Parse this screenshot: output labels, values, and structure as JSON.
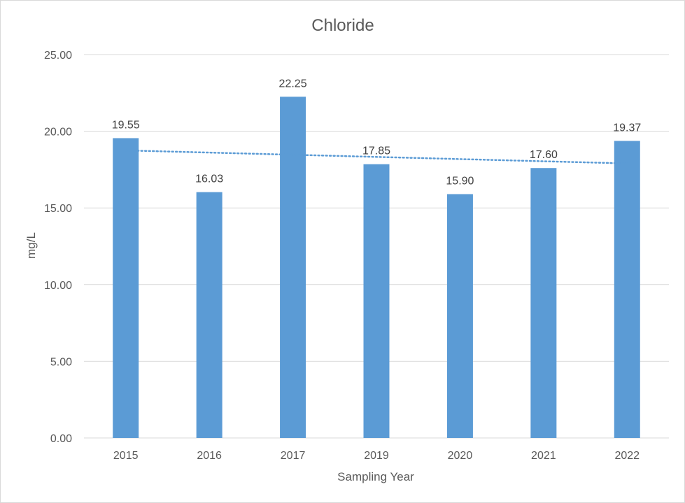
{
  "chart_data": {
    "type": "bar",
    "title": "Chloride",
    "xlabel": "Sampling Year",
    "ylabel": "mg/L",
    "categories": [
      "2015",
      "2016",
      "2017",
      "2019",
      "2020",
      "2021",
      "2022"
    ],
    "values": [
      19.55,
      16.03,
      22.25,
      17.85,
      15.9,
      17.6,
      19.37
    ],
    "data_labels": [
      "19.55",
      "16.03",
      "22.25",
      "17.85",
      "15.90",
      "17.60",
      "19.37"
    ],
    "ylim": [
      0,
      25
    ],
    "yticks": [
      0,
      5,
      10,
      15,
      20,
      25
    ],
    "ytick_labels": [
      "0.00",
      "5.00",
      "10.00",
      "15.00",
      "20.00",
      "25.00"
    ],
    "grid": true,
    "trendline": {
      "type": "linear",
      "style": "dotted",
      "start": 18.75,
      "end": 17.9
    },
    "colors": {
      "bar": "#5b9bd5",
      "trendline": "#5b9bd5",
      "grid": "#d9d9d9"
    }
  }
}
